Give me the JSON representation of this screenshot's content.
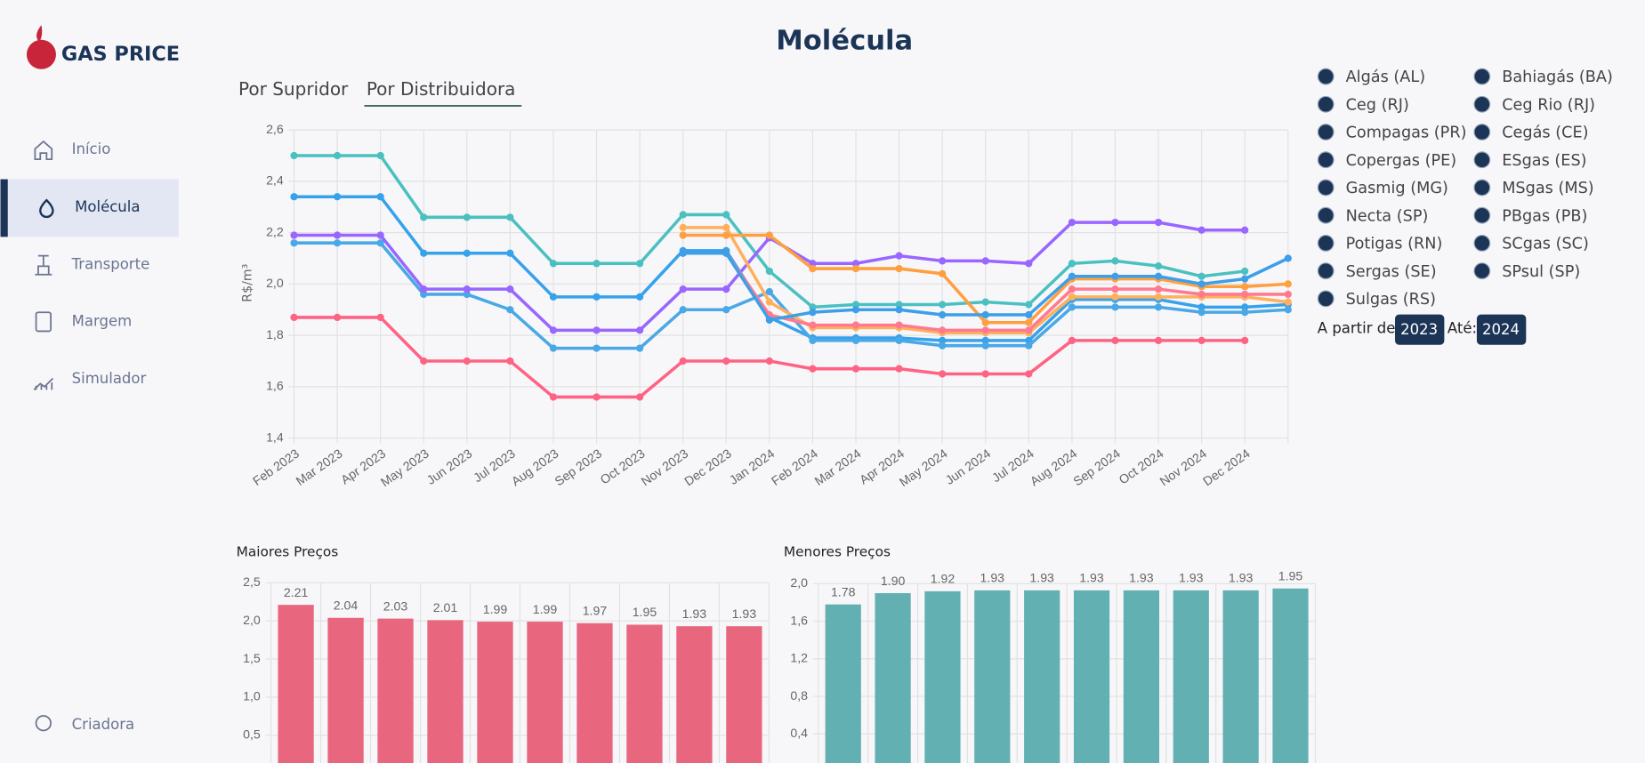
{
  "sidebar": {
    "logo": "GAS PRICE",
    "nav": [
      "Início",
      "Molécula",
      "Transporte",
      "Margem",
      "Simulador"
    ],
    "footer": "Criadora"
  },
  "page": {
    "title": "Molécula",
    "tabs": [
      "Por Supridor",
      "Por Distribuidora"
    ]
  },
  "filters": {
    "options": [
      "Algás (AL)",
      "Bahiagás (BA)",
      "Ceg (RJ)",
      "Ceg Rio (RJ)",
      "Compagas (PR)",
      "Cegás (CE)",
      "Copergas (PE)",
      "ESgas (ES)",
      "Gasmig (MG)",
      "MSgas (MS)",
      "Necta (SP)",
      "PBgas (PB)",
      "Potigas (RN)",
      "SCgas (SC)",
      "Sergas (SE)",
      "SPsul (SP)",
      "Sulgas (RS)"
    ],
    "from_label": "A partir de:",
    "from": "2023",
    "to_label": "Até:",
    "to": "2024"
  },
  "chart_data": [
    {
      "type": "line",
      "y_label": "R$/m³",
      "categories": [
        "Feb 2023",
        "Mar 2023",
        "Apr 2023",
        "May 2023",
        "Jun 2023",
        "Jul 2023",
        "Aug 2023",
        "Sep 2023",
        "Oct 2023",
        "Nov 2023",
        "Dec 2023",
        "Jan 2024",
        "Feb 2024",
        "Mar 2024",
        "Apr 2024",
        "May 2024",
        "Jun 2024",
        "Jul 2024",
        "Aug 2024",
        "Sep 2024",
        "Oct 2024",
        "Nov 2024",
        "Dec 2024",
        null
      ],
      "ylim": [
        1.4,
        2.6
      ],
      "yticks": [
        {
          "value": 1.4,
          "label": "1,4"
        },
        {
          "value": 1.6,
          "label": "1,6"
        },
        {
          "value": 1.8,
          "label": "1,8"
        },
        {
          "value": 2.0,
          "label": "2,0"
        },
        {
          "value": 2.2,
          "label": "2,2"
        },
        {
          "value": 2.4,
          "label": "2,4"
        },
        {
          "value": 2.6,
          "label": "2,6"
        }
      ],
      "grid": true,
      "series": [
        {
          "color": "#4bc0c0",
          "values": [
            2.5,
            2.5,
            2.5,
            2.26,
            2.26,
            2.26,
            2.08,
            2.08,
            2.08,
            2.27,
            2.27,
            2.05,
            1.91,
            1.92,
            1.92,
            1.92,
            1.93,
            1.92,
            2.08,
            2.09,
            2.07,
            2.03,
            2.05,
            null
          ]
        },
        {
          "color": "#36a2eb",
          "values": [
            2.34,
            2.34,
            2.34,
            2.12,
            2.12,
            2.12,
            1.95,
            1.95,
            1.95,
            2.13,
            2.13,
            1.87,
            1.79,
            1.79,
            1.79,
            1.78,
            1.78,
            1.78,
            1.94,
            1.94,
            1.94,
            1.91,
            1.91,
            1.92
          ]
        },
        {
          "color": "#4aa8e6",
          "values": [
            2.16,
            2.16,
            2.16,
            1.96,
            1.96,
            1.9,
            1.75,
            1.75,
            1.75,
            1.9,
            1.9,
            1.97,
            1.78,
            1.78,
            1.78,
            1.76,
            1.76,
            1.76,
            1.91,
            1.91,
            1.91,
            1.89,
            1.89,
            1.9
          ]
        },
        {
          "color": "#9966ff",
          "values": [
            2.19,
            2.19,
            2.19,
            1.98,
            1.98,
            1.98,
            1.82,
            1.82,
            1.82,
            1.98,
            1.98,
            2.18,
            2.08,
            2.08,
            2.11,
            2.09,
            2.09,
            2.08,
            2.24,
            2.24,
            2.24,
            2.21,
            2.21,
            null
          ]
        },
        {
          "color": "#ff6384",
          "values": [
            1.87,
            1.87,
            1.87,
            1.7,
            1.7,
            1.7,
            1.56,
            1.56,
            1.56,
            1.7,
            1.7,
            1.7,
            1.67,
            1.67,
            1.67,
            1.65,
            1.65,
            1.65,
            1.78,
            1.78,
            1.78,
            1.78,
            1.78,
            null
          ]
        },
        {
          "color": "#ffb05c",
          "values": [
            null,
            null,
            null,
            null,
            null,
            null,
            null,
            null,
            null,
            2.22,
            2.22,
            1.93,
            1.83,
            1.83,
            1.83,
            1.81,
            1.81,
            1.81,
            1.95,
            1.95,
            1.95,
            1.95,
            1.95,
            1.93
          ]
        },
        {
          "color": "#ff9f40",
          "values": [
            null,
            null,
            null,
            null,
            null,
            null,
            null,
            null,
            null,
            2.19,
            2.19,
            2.19,
            2.06,
            2.06,
            2.06,
            2.04,
            1.85,
            1.85,
            2.02,
            2.02,
            2.02,
            1.99,
            1.99,
            2.0
          ]
        },
        {
          "color": "#ff7a90",
          "values": [
            null,
            null,
            null,
            null,
            null,
            null,
            null,
            null,
            null,
            2.12,
            2.12,
            1.88,
            1.84,
            1.84,
            1.84,
            1.82,
            1.82,
            1.82,
            1.98,
            1.98,
            1.98,
            1.96,
            1.96,
            1.96
          ]
        },
        {
          "color": "#3d9fe8",
          "values": [
            null,
            null,
            null,
            null,
            null,
            null,
            null,
            null,
            null,
            2.12,
            2.12,
            1.86,
            1.89,
            1.9,
            1.9,
            1.88,
            1.88,
            1.88,
            2.03,
            2.03,
            2.03,
            2.0,
            2.02,
            2.1
          ]
        }
      ]
    },
    {
      "type": "bar",
      "title": "Maiores Preços",
      "color": "#e8677f",
      "values": [
        2.21,
        2.04,
        2.03,
        2.01,
        1.99,
        1.99,
        1.97,
        1.95,
        1.93,
        1.93
      ],
      "value_labels": [
        "2.21",
        "2.04",
        "2.03",
        "2.01",
        "1.99",
        "1.99",
        "1.97",
        "1.95",
        "1.93",
        "1.93"
      ],
      "ylim": [
        0,
        2.5
      ],
      "yticks": [
        {
          "value": 0.5,
          "label": "0,5"
        },
        {
          "value": 1.0,
          "label": "1,0"
        },
        {
          "value": 1.5,
          "label": "1,5"
        },
        {
          "value": 2.0,
          "label": "2,0"
        },
        {
          "value": 2.5,
          "label": "2,5"
        }
      ],
      "grid": true
    },
    {
      "type": "bar",
      "title": "Menores Preços",
      "color": "#63b0b2",
      "values": [
        1.78,
        1.9,
        1.92,
        1.93,
        1.93,
        1.93,
        1.93,
        1.93,
        1.93,
        1.95
      ],
      "value_labels": [
        "1.78",
        "1.90",
        "1.92",
        "1.93",
        "1.93",
        "1.93",
        "1.93",
        "1.93",
        "1.93",
        "1.95"
      ],
      "ylim": [
        0,
        2.0
      ],
      "yticks": [
        {
          "value": 0.4,
          "label": "0,4"
        },
        {
          "value": 0.8,
          "label": "0,8"
        },
        {
          "value": 1.2,
          "label": "1,2"
        },
        {
          "value": 1.6,
          "label": "1,6"
        },
        {
          "value": 2.0,
          "label": "2,0"
        }
      ],
      "grid": true
    }
  ]
}
